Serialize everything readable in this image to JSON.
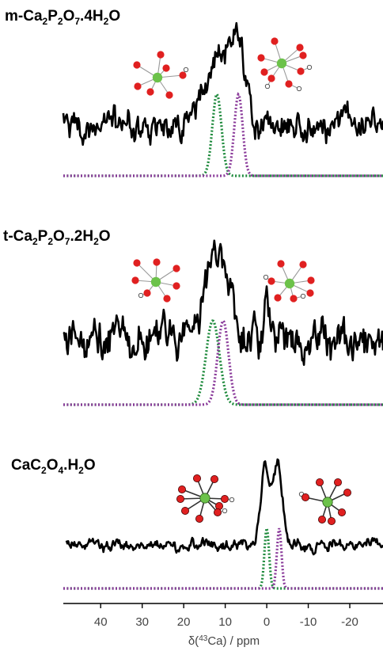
{
  "panels": [
    {
      "label_parts": [
        {
          "t": "m-Ca"
        },
        {
          "t": "2",
          "sub": true
        },
        {
          "t": "P"
        },
        {
          "t": "2",
          "sub": true
        },
        {
          "t": "O"
        },
        {
          "t": "7",
          "sub": true
        },
        {
          "t": ".4H"
        },
        {
          "t": "2",
          "sub": true
        },
        {
          "t": "O"
        }
      ]
    },
    {
      "label_parts": [
        {
          "t": "t-Ca"
        },
        {
          "t": "2",
          "sub": true
        },
        {
          "t": "P"
        },
        {
          "t": "2",
          "sub": true
        },
        {
          "t": "O"
        },
        {
          "t": "7",
          "sub": true
        },
        {
          "t": ".2H"
        },
        {
          "t": "2",
          "sub": true
        },
        {
          "t": "O"
        }
      ]
    },
    {
      "label_parts": [
        {
          "t": "CaC"
        },
        {
          "t": "2",
          "sub": true
        },
        {
          "t": "O"
        },
        {
          "t": "4",
          "sub": true
        },
        {
          "t": ".H"
        },
        {
          "t": "2",
          "sub": true
        },
        {
          "t": "O"
        }
      ]
    }
  ],
  "chart_data": {
    "type": "line",
    "title": "",
    "xlabel": "δ(43Ca) / ppm",
    "xlabel_parts": [
      {
        "t": "δ("
      },
      {
        "t": "43",
        "sup": true
      },
      {
        "t": "Ca) / ppm"
      }
    ],
    "x_reversed": true,
    "xlim": [
      49,
      -28
    ],
    "x_ticks": [
      40,
      30,
      20,
      10,
      0,
      -10,
      -20
    ],
    "x_tick_labels": [
      "40",
      "30",
      "20",
      "10",
      "0",
      "-10",
      "-20"
    ],
    "grid": false,
    "colors": {
      "experimental": "#000000",
      "site_1": "#1e8a3c",
      "site_2": "#8a3a9a"
    },
    "spectra": [
      {
        "experimental": {
          "peaks": [
            {
              "center": 12.5,
              "width": 2.5,
              "height": 0.75
            },
            {
              "center": 7.0,
              "width": 1.9,
              "height": 1.0
            }
          ],
          "noise_level": 0.16
        },
        "fits": [
          {
            "center": 12.0,
            "width": 1.1
          },
          {
            "center": 6.8,
            "width": 1.0
          }
        ]
      },
      {
        "experimental": {
          "peaks": [
            {
              "center": 12.0,
              "width": 2.8,
              "height": 1.0
            },
            {
              "center": 0.0,
              "width": 0.7,
              "height": 0.35
            }
          ],
          "noise_level": 0.18
        },
        "fits": [
          {
            "center": 13.0,
            "width": 1.6
          },
          {
            "center": 10.5,
            "width": 1.3
          }
        ]
      },
      {
        "experimental": {
          "peaks": [
            {
              "center": 0.3,
              "width": 1.1,
              "height": 1.0
            },
            {
              "center": -2.7,
              "width": 1.1,
              "height": 1.0
            }
          ],
          "noise_level": 0.06
        },
        "fits": [
          {
            "center": 0.0,
            "width": 0.55
          },
          {
            "center": -3.0,
            "width": 0.55
          }
        ]
      }
    ]
  },
  "atom_colors": {
    "calcium": "#6cc24a",
    "oxygen": "#e02020",
    "hydrogen": "#ffffff"
  }
}
